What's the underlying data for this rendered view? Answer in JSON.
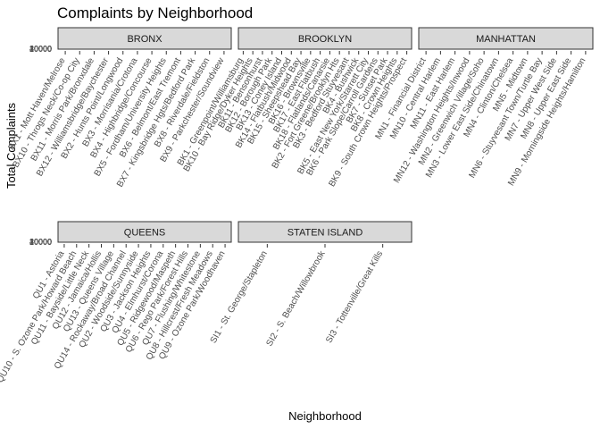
{
  "chart_data": {
    "type": "bar",
    "title": "Complaints by Neighborhood",
    "xlabel": "Neighborhood",
    "ylabel": "Total Complaints",
    "y_tick_labels": [
      "0",
      "10000",
      "20000",
      "30000",
      "40000"
    ],
    "facets": [
      {
        "name": "BRONX",
        "categories": [
          "BX1 - Mott Haven/Melrose",
          "BX10 - Throgs Neck/Co-op City",
          "BX11 - Morris Park/Bronxdale",
          "BX12 - Williamsbridge/Baychester",
          "BX2 - Hunts Point/Longwood",
          "BX3 - Morrisania/Crotona",
          "BX4 - Highbridge/Concourse",
          "BX5 - Fordham/University Heights",
          "BX6 - Belmont/East Tremont",
          "BX7 - Kingsbridge Hgts/Bedford Park",
          "BX8 - Riverdale/Fieldston",
          "BX9 - Parkchester/Soundview"
        ]
      },
      {
        "name": "BROOKLYN",
        "categories": [
          "BK1 - Greenpoint/Williamsburg",
          "BK10 - Bay Ridge/Dyker Heights",
          "BK11 - Bensonhurst",
          "BK12 - Borough Park",
          "BK13 - Coney Island",
          "BK14 - Flatbush/Midwood",
          "BK15 - Sheepshead Bay",
          "BK16 - Brownsville",
          "BK17 - East Flatbush",
          "BK18 - Flatlands/Canarsie",
          "BK2 - Fort Greene/Brooklyn Hts",
          "BK3 - Bedford Stuyvesant",
          "BK4 - Bushwick",
          "BK5 - East New York/Starrett City",
          "BK6 - Park Slope/Carroll Gardens",
          "BK7 - Sunset Park",
          "BK8 - Crown Heights",
          "BK9 - South Crown Heights/Prospect"
        ]
      },
      {
        "name": "MANHATTAN",
        "categories": [
          "MN1 - Financial District",
          "MN10 - Central Harlem",
          "MN11 - East Harlem",
          "MN12 - Washington Heights/Inwood",
          "MN2 - Greenwich Village/Soho",
          "MN3 - Lower East Side/Chinatown",
          "MN4 - Clinton/Chelsea",
          "MN5 - Midtown",
          "MN6 - Stuyvesant Town/Turtle Bay",
          "MN7 - Upper West Side",
          "MN8 - Upper East Side",
          "MN9 - Morningside Heights/Hamilton"
        ]
      },
      {
        "name": "QUEENS",
        "categories": [
          "QU1 - Astoria",
          "QU10 - S. Ozone Park/Howard Beach",
          "QU11 - Bayside/Little Neck",
          "QU12 - Jamaica/Hollis",
          "QU13 - Queens Village",
          "QU14 - Rockaway/Broad Channel",
          "QU2 - Woodside/Sunnyside",
          "QU3 - Jackson Heights",
          "QU4 - Elmhurst/Corona",
          "QU5 - Ridgewood/Maspeth",
          "QU6 - Rego Park/Forest Hills",
          "QU7 - Flushing/Whitestone",
          "QU8 - Hillcrest/Fresh Meadows",
          "QU9 - Ozone Park/Woodhaven"
        ]
      },
      {
        "name": "STATEN ISLAND",
        "categories": [
          "SI1 - St. George/Stapleton",
          "SI2 - S. Beach/Willowbrook",
          "SI3 - Tottenville/Great Kills"
        ]
      }
    ]
  }
}
